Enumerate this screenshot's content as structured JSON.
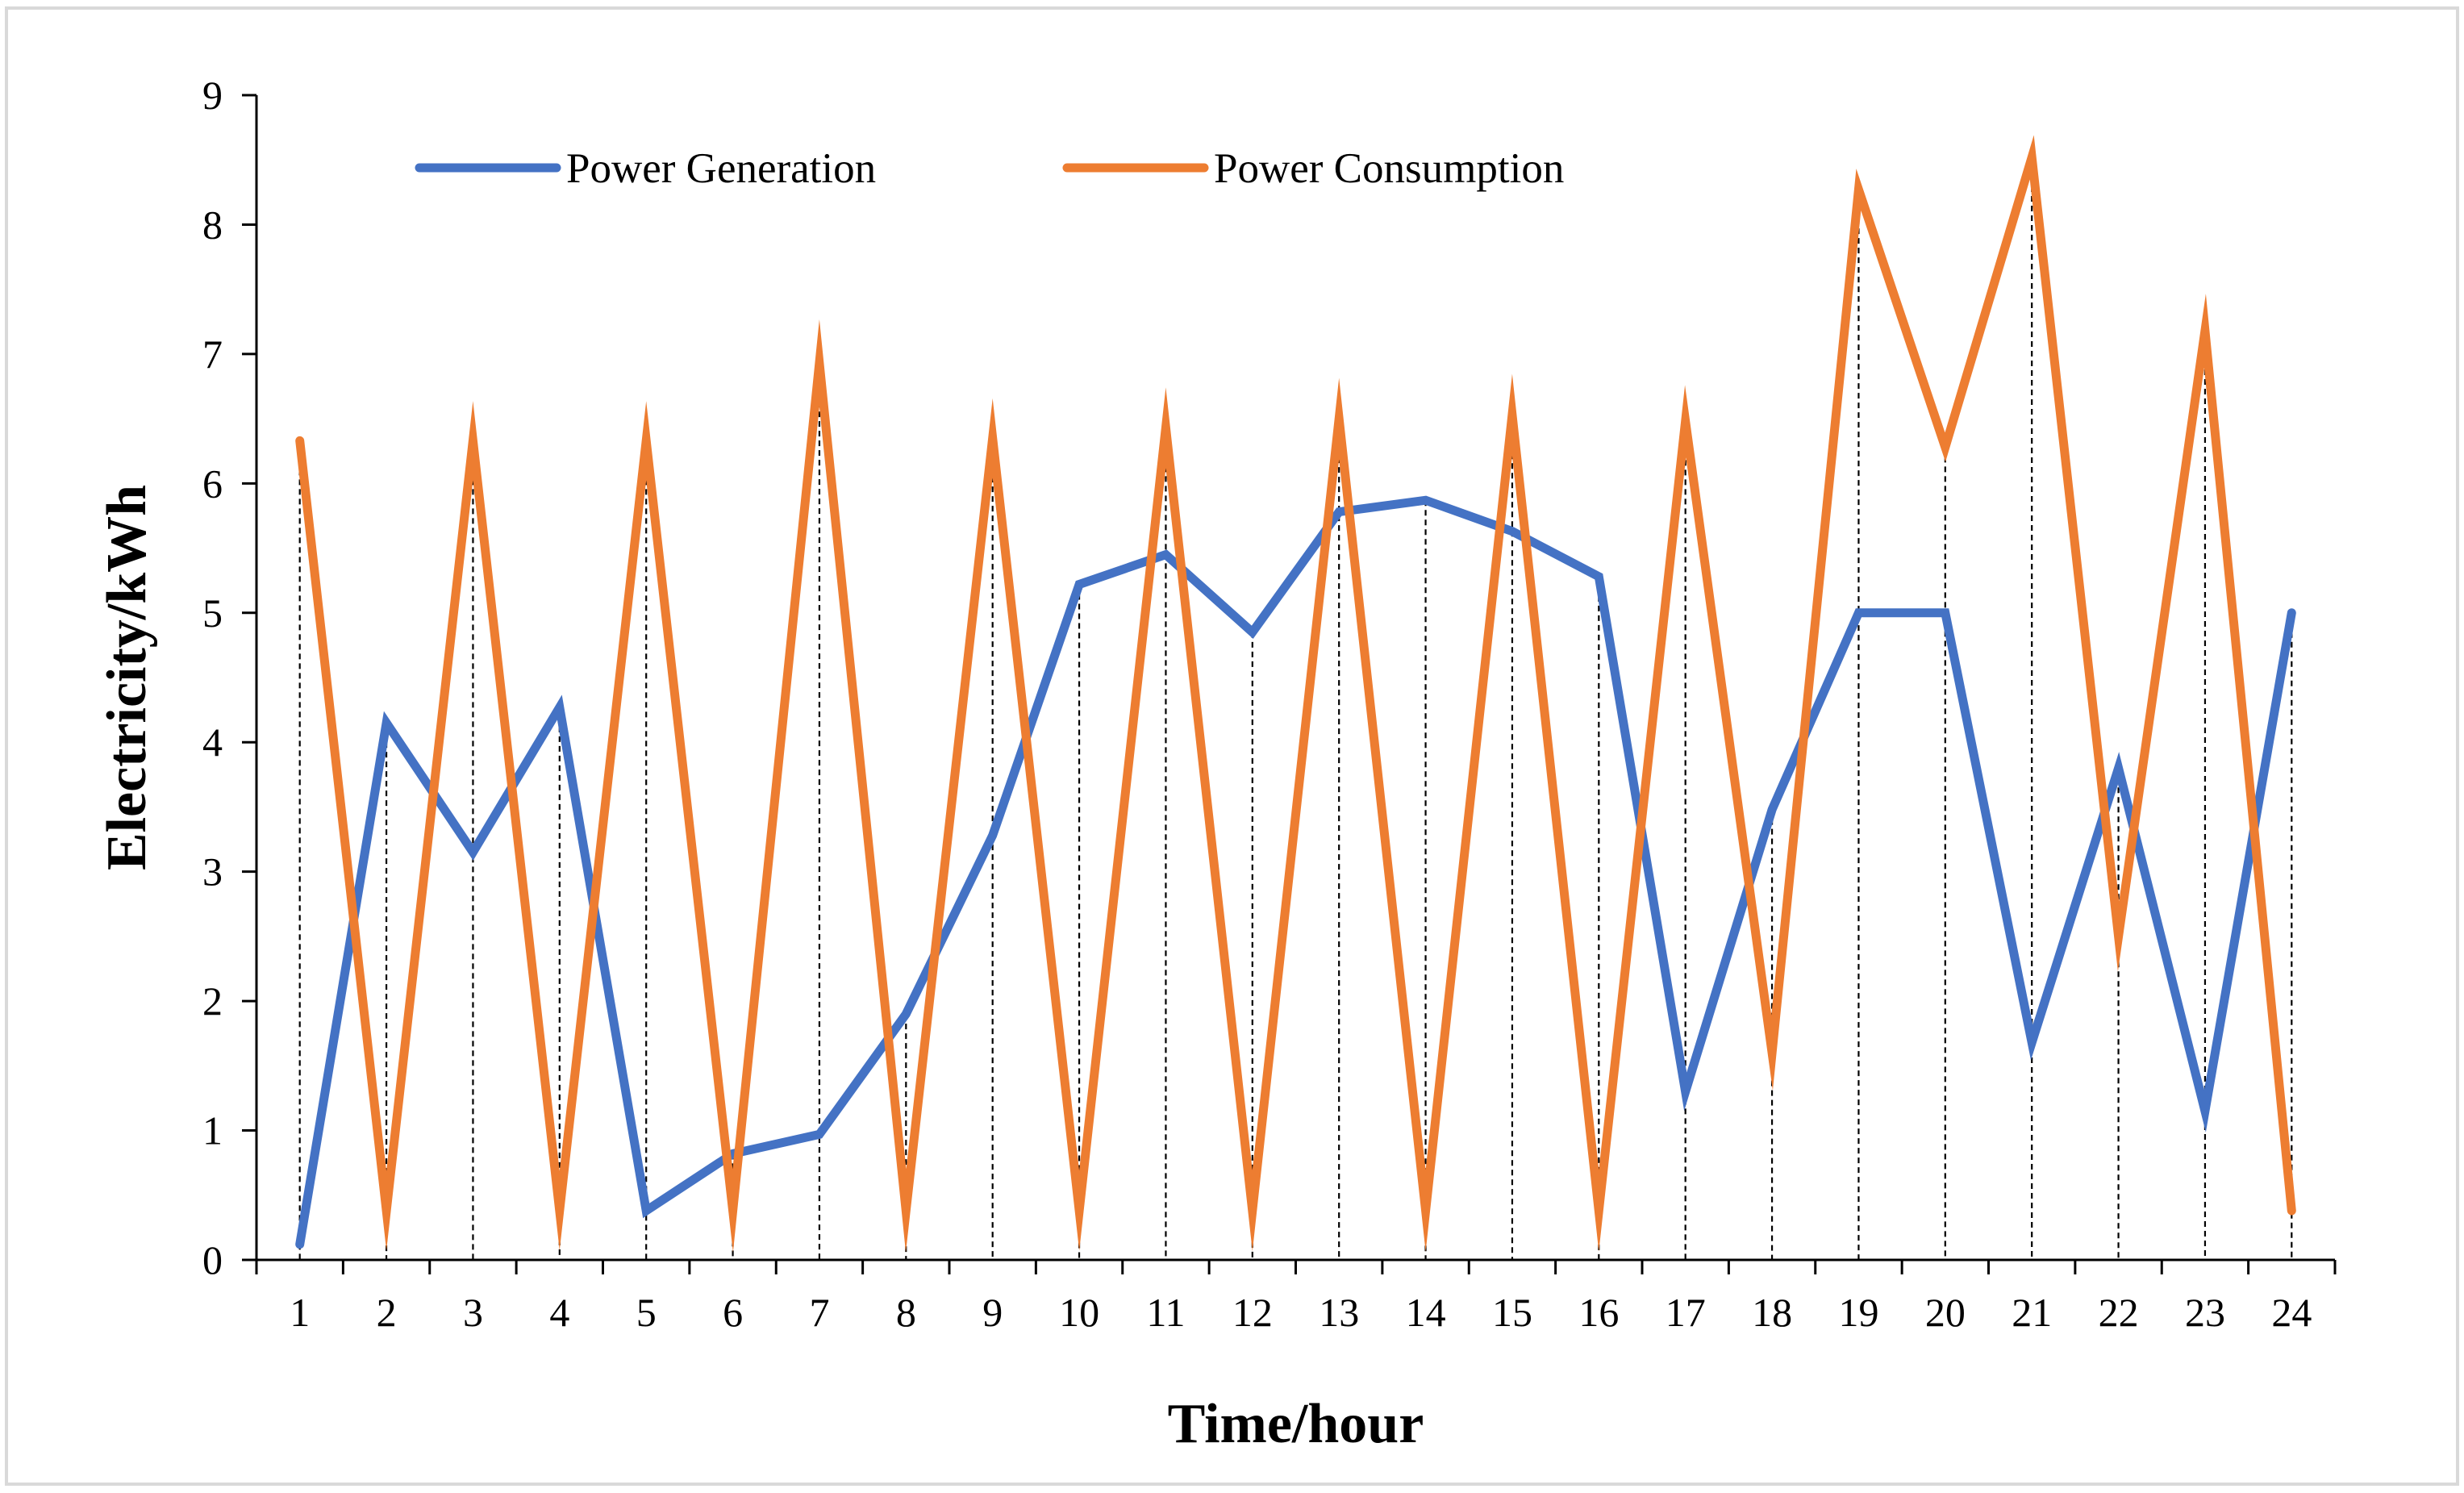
{
  "chart_data": {
    "type": "line",
    "title": "",
    "xlabel": "Time/hour",
    "ylabel": "Electricity/kWh",
    "ylim": [
      0,
      9
    ],
    "yticks": [
      0,
      1,
      2,
      3,
      4,
      5,
      6,
      7,
      8,
      9
    ],
    "grid": false,
    "drop_lines": true,
    "legend_position": "top-left",
    "categories": [
      "1",
      "2",
      "3",
      "4",
      "5",
      "6",
      "7",
      "8",
      "9",
      "10",
      "11",
      "12",
      "13",
      "14",
      "15",
      "16",
      "17",
      "18",
      "19",
      "20",
      "21",
      "22",
      "23",
      "24"
    ],
    "series": [
      {
        "name": "Power Generation",
        "color": "#4472C4",
        "values": [
          0.12,
          4.15,
          3.15,
          4.27,
          0.38,
          0.82,
          0.97,
          1.9,
          3.28,
          5.22,
          5.45,
          4.85,
          5.78,
          5.87,
          5.63,
          5.28,
          1.3,
          3.48,
          5.0,
          5.0,
          1.68,
          3.8,
          1.15,
          5.0
        ]
      },
      {
        "name": "Power Consumption",
        "color": "#ED7D31",
        "values": [
          6.33,
          0.38,
          6.33,
          0.38,
          6.33,
          0.38,
          6.93,
          0.38,
          6.35,
          0.38,
          6.43,
          0.38,
          6.5,
          0.38,
          6.53,
          0.38,
          6.48,
          1.6,
          8.27,
          6.28,
          8.52,
          2.5,
          7.18,
          0.38
        ]
      }
    ]
  }
}
